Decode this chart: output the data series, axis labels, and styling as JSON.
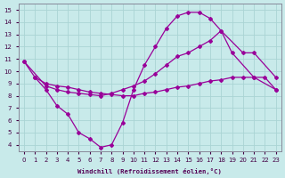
{
  "title": "",
  "xlabel": "Windchill (Refroidissement éolien,°C)",
  "bg_color": "#c8eaea",
  "grid_color": "#aad4d4",
  "line_color": "#990099",
  "xlim": [
    -0.5,
    23.5
  ],
  "ylim": [
    3.5,
    15.5
  ],
  "yticks": [
    4,
    5,
    6,
    7,
    8,
    9,
    10,
    11,
    12,
    13,
    14,
    15
  ],
  "xticks": [
    0,
    1,
    2,
    3,
    4,
    5,
    6,
    7,
    8,
    9,
    10,
    11,
    12,
    13,
    14,
    15,
    16,
    17,
    18,
    19,
    20,
    21,
    22,
    23
  ],
  "line_a_x": [
    0,
    1,
    2,
    3,
    4,
    5,
    6,
    7,
    8,
    9,
    10,
    11,
    12,
    13,
    14,
    15,
    16,
    17,
    18,
    19,
    21,
    23
  ],
  "line_a_y": [
    10.8,
    9.5,
    8.5,
    7.2,
    6.5,
    5.0,
    4.5,
    3.8,
    4.0,
    5.8,
    8.5,
    10.5,
    12.0,
    13.5,
    14.5,
    14.8,
    14.8,
    14.3,
    13.3,
    11.5,
    9.5,
    8.5
  ],
  "line_b_x": [
    1,
    2,
    3,
    4,
    5,
    6,
    7,
    8,
    9,
    10,
    11,
    12,
    13,
    14,
    15,
    16,
    17,
    18,
    19,
    20,
    21,
    22,
    23
  ],
  "line_b_y": [
    9.5,
    9.0,
    8.8,
    8.7,
    8.5,
    8.3,
    8.2,
    8.1,
    8.0,
    8.0,
    8.2,
    8.3,
    8.5,
    8.7,
    8.8,
    9.0,
    9.2,
    9.3,
    9.5,
    9.5,
    9.5,
    9.5,
    8.5
  ],
  "line_c_x": [
    0,
    2,
    3,
    4,
    5,
    6,
    7,
    8,
    9,
    10,
    11,
    12,
    13,
    14,
    15,
    16,
    17,
    18,
    20,
    21,
    23
  ],
  "line_c_y": [
    10.8,
    8.8,
    8.5,
    8.3,
    8.2,
    8.1,
    8.0,
    8.2,
    8.5,
    8.8,
    9.2,
    9.8,
    10.5,
    11.2,
    11.5,
    12.0,
    12.5,
    13.3,
    11.5,
    11.5,
    9.5
  ]
}
